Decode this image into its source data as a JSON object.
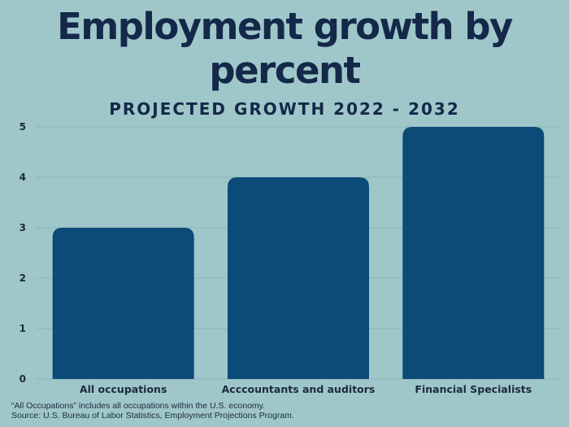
{
  "chart_data": {
    "type": "bar",
    "title": "Employment growth by percent",
    "subtitle": "PROJECTED GROWTH 2022 - 2032",
    "categories": [
      "All occupations",
      "Acccountants and auditors",
      "Financial Specialists"
    ],
    "values": [
      3,
      4,
      5
    ],
    "xlabel": "",
    "ylabel": "",
    "ylim": [
      0,
      5
    ],
    "yticks": [
      0,
      1,
      2,
      3,
      4,
      5
    ],
    "grid": true,
    "bar_color": "#0c4a77",
    "grid_color": "#8bb6b9"
  },
  "footnote": {
    "line1": "“All Occupations” includes all occupations within the U.S. economy.",
    "line2": "Source: U.S. Bureau of Labor Statistics, Employment Projections Program."
  }
}
